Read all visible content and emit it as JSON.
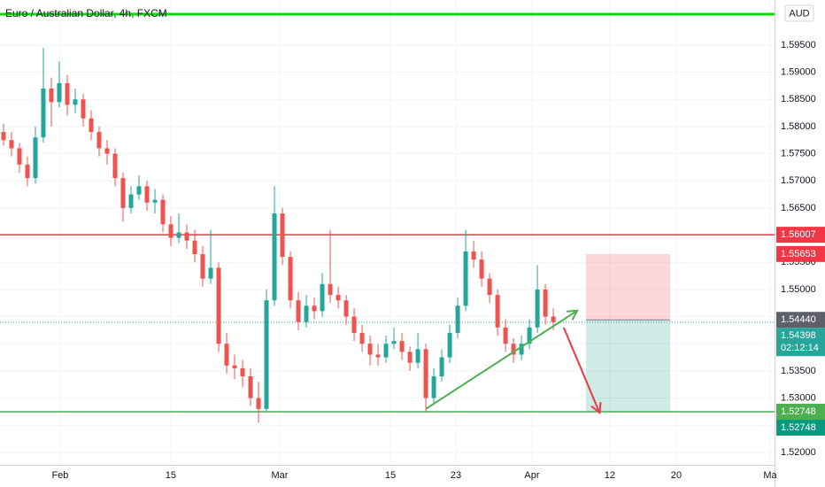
{
  "chart_data": {
    "type": "candlestick",
    "title": "Euro / Australian Dollar, 4h, FXCM",
    "currency": "AUD",
    "up_color": "#26a69a",
    "down_color": "#ef5350",
    "xlim": [
      -0.44,
      96.76
    ],
    "xticks": [
      {
        "value": 7.11,
        "label": "Feb"
      },
      {
        "value": 20.99,
        "label": "15"
      },
      {
        "value": 34.66,
        "label": "Mar"
      },
      {
        "value": 48.55,
        "label": "15"
      },
      {
        "value": 56.77,
        "label": "23"
      },
      {
        "value": 66.32,
        "label": "Apr"
      },
      {
        "value": 76.09,
        "label": "12"
      },
      {
        "value": 84.43,
        "label": "20"
      },
      {
        "value": 96.2,
        "label": "Ma"
      }
    ],
    "ylim": [
      1.5177,
      1.6033
    ],
    "yticks": [
      {
        "value": 1.595,
        "label": "1.59500"
      },
      {
        "value": 1.59,
        "label": "1.59000"
      },
      {
        "value": 1.585,
        "label": "1.58500"
      },
      {
        "value": 1.58,
        "label": "1.58000"
      },
      {
        "value": 1.575,
        "label": "1.57500"
      },
      {
        "value": 1.57,
        "label": "1.57000"
      },
      {
        "value": 1.565,
        "label": "1.56500"
      },
      {
        "value": 1.56,
        "label": "1.56000"
      },
      {
        "value": 1.555,
        "label": "1.55500"
      },
      {
        "value": 1.55,
        "label": "1.55000"
      },
      {
        "value": 1.545,
        "label": "1.54500"
      },
      {
        "value": 1.54,
        "label": "1.54000"
      },
      {
        "value": 1.535,
        "label": "1.53500"
      },
      {
        "value": 1.53,
        "label": "1.53000"
      },
      {
        "value": 1.525,
        "label": "1.52500"
      },
      {
        "value": 1.52,
        "label": "1.52000"
      }
    ],
    "grid": true,
    "candles": [
      [
        1.579,
        1.5805,
        1.5765,
        1.5775
      ],
      [
        1.5775,
        1.579,
        1.5745,
        1.576
      ],
      [
        1.576,
        1.577,
        1.5715,
        1.573
      ],
      [
        1.573,
        1.5745,
        1.569,
        1.5705
      ],
      [
        1.5705,
        1.58,
        1.5695,
        1.578
      ],
      [
        1.578,
        1.5945,
        1.577,
        1.587
      ],
      [
        1.587,
        1.589,
        1.58,
        1.5845
      ],
      [
        1.5845,
        1.592,
        1.5835,
        1.588
      ],
      [
        1.588,
        1.5895,
        1.582,
        1.584
      ],
      [
        1.584,
        1.587,
        1.5825,
        1.585
      ],
      [
        1.585,
        1.586,
        1.58,
        1.5815
      ],
      [
        1.5815,
        1.583,
        1.5775,
        1.579
      ],
      [
        1.579,
        1.58,
        1.5745,
        1.576
      ],
      [
        1.576,
        1.5775,
        1.573,
        1.575
      ],
      [
        1.575,
        1.576,
        1.569,
        1.5705
      ],
      [
        1.5705,
        1.5715,
        1.5625,
        1.565
      ],
      [
        1.565,
        1.569,
        1.564,
        1.5675
      ],
      [
        1.5675,
        1.571,
        1.5665,
        1.569
      ],
      [
        1.569,
        1.57,
        1.5645,
        1.566
      ],
      [
        1.566,
        1.5685,
        1.564,
        1.5665
      ],
      [
        1.5665,
        1.5675,
        1.5605,
        1.562
      ],
      [
        1.562,
        1.5635,
        1.558,
        1.5595
      ],
      [
        1.5595,
        1.564,
        1.5585,
        1.5605
      ],
      [
        1.5605,
        1.562,
        1.5575,
        1.559
      ],
      [
        1.559,
        1.561,
        1.555,
        1.5565
      ],
      [
        1.5565,
        1.558,
        1.5505,
        1.552
      ],
      [
        1.552,
        1.561,
        1.551,
        1.554
      ],
      [
        1.554,
        1.555,
        1.5385,
        1.54
      ],
      [
        1.54,
        1.542,
        1.5345,
        1.536
      ],
      [
        1.536,
        1.538,
        1.5335,
        1.5355
      ],
      [
        1.5355,
        1.537,
        1.532,
        1.534
      ],
      [
        1.534,
        1.5355,
        1.5285,
        1.53
      ],
      [
        1.53,
        1.533,
        1.5255,
        1.528
      ],
      [
        1.528,
        1.55,
        1.5275,
        1.548
      ],
      [
        1.548,
        1.569,
        1.547,
        1.564
      ],
      [
        1.564,
        1.565,
        1.5545,
        1.556
      ],
      [
        1.556,
        1.557,
        1.5465,
        1.548
      ],
      [
        1.548,
        1.5495,
        1.5425,
        1.544
      ],
      [
        1.544,
        1.549,
        1.543,
        1.547
      ],
      [
        1.547,
        1.5485,
        1.5445,
        1.546
      ],
      [
        1.546,
        1.553,
        1.545,
        1.551
      ],
      [
        1.551,
        1.561,
        1.5475,
        1.549
      ],
      [
        1.549,
        1.5505,
        1.5465,
        1.548
      ],
      [
        1.548,
        1.549,
        1.5435,
        1.545
      ],
      [
        1.545,
        1.5465,
        1.5405,
        1.542
      ],
      [
        1.542,
        1.5435,
        1.5385,
        1.54
      ],
      [
        1.54,
        1.5415,
        1.536,
        1.538
      ],
      [
        1.538,
        1.54,
        1.536,
        1.5375
      ],
      [
        1.5375,
        1.5415,
        1.5365,
        1.54
      ],
      [
        1.54,
        1.543,
        1.539,
        1.5405
      ],
      [
        1.5405,
        1.542,
        1.537,
        1.5385
      ],
      [
        1.5385,
        1.5395,
        1.535,
        1.5365
      ],
      [
        1.5365,
        1.542,
        1.5355,
        1.539
      ],
      [
        1.539,
        1.54,
        1.5275,
        1.53
      ],
      [
        1.53,
        1.5355,
        1.529,
        1.534
      ],
      [
        1.534,
        1.539,
        1.533,
        1.5375
      ],
      [
        1.5375,
        1.5435,
        1.5365,
        1.542
      ],
      [
        1.542,
        1.5485,
        1.541,
        1.547
      ],
      [
        1.547,
        1.561,
        1.546,
        1.557
      ],
      [
        1.557,
        1.559,
        1.554,
        1.5555
      ],
      [
        1.5555,
        1.557,
        1.5505,
        1.552
      ],
      [
        1.552,
        1.553,
        1.5475,
        1.549
      ],
      [
        1.549,
        1.55,
        1.5415,
        1.543
      ],
      [
        1.543,
        1.5445,
        1.5385,
        1.54
      ],
      [
        1.54,
        1.541,
        1.5365,
        1.538
      ],
      [
        1.538,
        1.5415,
        1.537,
        1.54
      ],
      [
        1.54,
        1.5445,
        1.539,
        1.543
      ],
      [
        1.543,
        1.5545,
        1.542,
        1.55
      ],
      [
        1.55,
        1.551,
        1.5435,
        1.545
      ],
      [
        1.545,
        1.5465,
        1.5425,
        1.544
      ]
    ],
    "horizontal_lines": [
      {
        "value": 1.6007,
        "color": "#00e000"
      },
      {
        "value": 1.56007,
        "color": "#f23645"
      },
      {
        "value": 1.52748,
        "color": "#4caf50"
      }
    ],
    "last_price": 1.54398,
    "position": {
      "stop": 1.55653,
      "entry": 1.5444,
      "target": 1.52748,
      "start": 73.1,
      "end": 83.65
    },
    "drawings": [
      {
        "color": "#4caf50",
        "x": [
          53.0,
          72.0
        ],
        "y": [
          1.528,
          1.5461
        ]
      },
      {
        "color": "#f23645",
        "x": [
          70.3,
          74.8
        ],
        "y": [
          1.543,
          1.5273
        ]
      }
    ],
    "price_labels": [
      {
        "value": 1.56007,
        "color": "#f23645"
      },
      {
        "value": 1.55653,
        "color": "#f23645"
      },
      {
        "value": 1.5444,
        "label": "1.54440",
        "color": "#5d606b"
      },
      {
        "value": 1.54398,
        "color": "#26a69a",
        "countdown": "02:12:14"
      },
      {
        "value": 1.52748,
        "color": "#4caf50"
      },
      {
        "value": 1.52748,
        "color": "#089981"
      }
    ]
  }
}
